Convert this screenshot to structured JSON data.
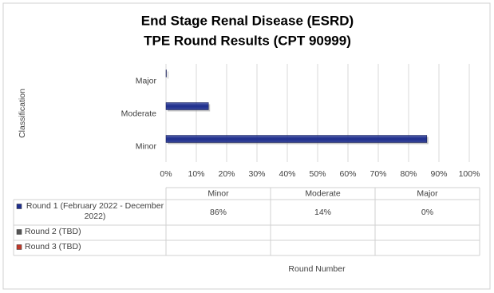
{
  "chart_data": {
    "type": "hbar",
    "title": [
      "End Stage Renal Disease (ESRD)",
      "TPE Round Results (CPT 90999)"
    ],
    "y_label": "Classification",
    "x_label": "Round Number",
    "categories": [
      "Minor",
      "Moderate",
      "Major"
    ],
    "series": [
      {
        "name": "Round 1 (February 2022 - December 2022)",
        "color": "#1f2f8f",
        "values": [
          86,
          14,
          0
        ],
        "value_labels": [
          "86%",
          "14%",
          "0%"
        ]
      },
      {
        "name": "Round 2 (TBD)",
        "color": "#555555",
        "values": [
          null,
          null,
          null
        ]
      },
      {
        "name": "Round 3 (TBD)",
        "color": "#c0392b",
        "values": [
          null,
          null,
          null
        ]
      }
    ],
    "xlim": [
      0,
      100
    ],
    "xticks": [
      {
        "value": 0,
        "label": "0%"
      },
      {
        "value": 10,
        "label": "10%"
      },
      {
        "value": 20,
        "label": "20%"
      },
      {
        "value": 30,
        "label": "30%"
      },
      {
        "value": 40,
        "label": "40%"
      },
      {
        "value": 50,
        "label": "50%"
      },
      {
        "value": 60,
        "label": "60%"
      },
      {
        "value": 70,
        "label": "70%"
      },
      {
        "value": 80,
        "label": "80%"
      },
      {
        "value": 90,
        "label": "90%"
      },
      {
        "value": 100,
        "label": "100%"
      }
    ],
    "grid": true
  }
}
